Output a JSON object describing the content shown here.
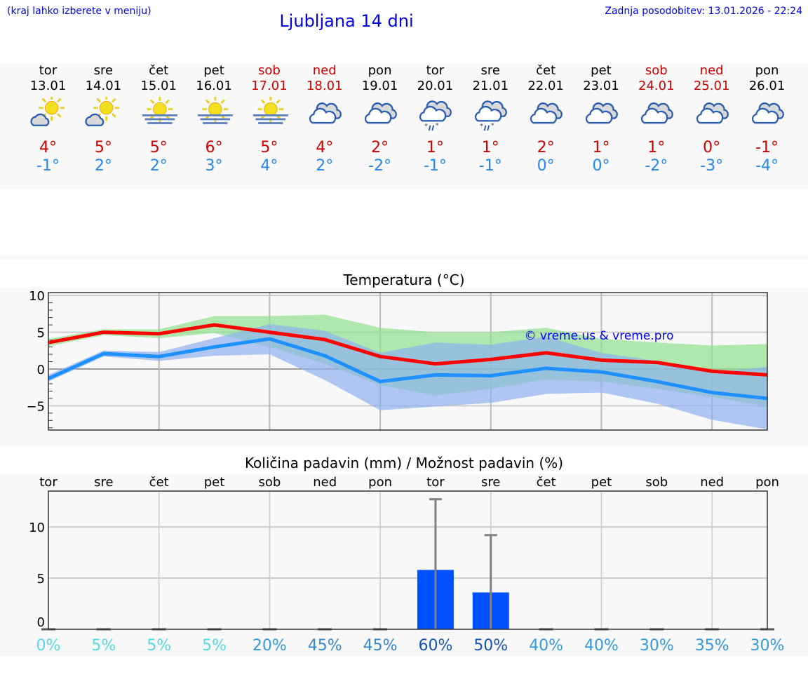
{
  "header": {
    "hint": "(kraj lahko izberete v meniju)",
    "title": "Ljubljana 14 dni",
    "updated": "Zadnja posodobitev: 13.01.2026 - 22:24"
  },
  "colors": {
    "weekend": "#cc0000",
    "max": "#ff0000",
    "min": "#1e90ff",
    "max_band": "#90e090",
    "min_band": "#8fb0ee",
    "precip_bar": "#0050ff",
    "error_bar": "#808080"
  },
  "days": [
    {
      "name": "tor",
      "date": "13.01",
      "weekend": false,
      "icon": "partly-cloudy",
      "max": "4°",
      "min": "-1°"
    },
    {
      "name": "sre",
      "date": "14.01",
      "weekend": false,
      "icon": "partly-cloudy",
      "max": "5°",
      "min": "2°"
    },
    {
      "name": "čet",
      "date": "15.01",
      "weekend": false,
      "icon": "sun-fog",
      "max": "5°",
      "min": "2°"
    },
    {
      "name": "pet",
      "date": "16.01",
      "weekend": false,
      "icon": "sun-fog",
      "max": "6°",
      "min": "3°"
    },
    {
      "name": "sob",
      "date": "17.01",
      "weekend": true,
      "icon": "sun-fog",
      "max": "5°",
      "min": "4°"
    },
    {
      "name": "ned",
      "date": "18.01",
      "weekend": true,
      "icon": "cloudy",
      "max": "4°",
      "min": "2°"
    },
    {
      "name": "pon",
      "date": "19.01",
      "weekend": false,
      "icon": "cloudy",
      "max": "2°",
      "min": "-2°"
    },
    {
      "name": "tor",
      "date": "20.01",
      "weekend": false,
      "icon": "cloudy-sleet",
      "max": "1°",
      "min": "-1°"
    },
    {
      "name": "sre",
      "date": "21.01",
      "weekend": false,
      "icon": "cloudy-sleet",
      "max": "1°",
      "min": "-1°"
    },
    {
      "name": "čet",
      "date": "22.01",
      "weekend": false,
      "icon": "cloudy",
      "max": "2°",
      "min": "0°"
    },
    {
      "name": "pet",
      "date": "23.01",
      "weekend": false,
      "icon": "cloudy",
      "max": "1°",
      "min": "0°"
    },
    {
      "name": "sob",
      "date": "24.01",
      "weekend": true,
      "icon": "cloudy",
      "max": "1°",
      "min": "-2°"
    },
    {
      "name": "ned",
      "date": "25.01",
      "weekend": true,
      "icon": "cloudy",
      "max": "0°",
      "min": "-3°"
    },
    {
      "name": "pon",
      "date": "26.01",
      "weekend": false,
      "icon": "cloudy",
      "max": "-1°",
      "min": "-4°"
    }
  ],
  "chart_data": [
    {
      "type": "line",
      "title": "Temperatura (°C)",
      "ylim": [
        -8.3,
        10.4
      ],
      "yticks": [
        "10",
        "5",
        "0",
        "−5"
      ],
      "ytick_values": [
        10,
        5,
        0,
        -5
      ],
      "grid": true,
      "watermark": "© vreme.us & vreme.pro",
      "series": [
        {
          "key": "max",
          "values": [
            3.6,
            5.0,
            4.8,
            6.0,
            5.0,
            4.0,
            1.7,
            0.7,
            1.3,
            2.2,
            1.2,
            0.9,
            -0.3,
            -0.8
          ]
        },
        {
          "key": "min",
          "values": [
            -1.3,
            2.1,
            1.7,
            3.0,
            4.1,
            1.8,
            -1.7,
            -0.8,
            -0.9,
            0.1,
            -0.4,
            -1.7,
            -3.2,
            -4.0
          ]
        }
      ],
      "bands": [
        {
          "key": "min_band",
          "upper": [
            -0.8,
            2.5,
            2.3,
            4.2,
            6.1,
            5.2,
            2.2,
            3.6,
            3.3,
            4.4,
            2.2,
            1.1,
            -0.5,
            0.3
          ],
          "lower": [
            -1.7,
            1.7,
            1.1,
            1.8,
            2.0,
            -1.5,
            -5.6,
            -5.1,
            -4.6,
            -3.4,
            -3.2,
            -4.7,
            -6.9,
            -8.2
          ]
        },
        {
          "key": "max_band",
          "upper": [
            4.1,
            5.4,
            5.4,
            7.2,
            7.2,
            7.4,
            5.6,
            5.0,
            5.0,
            5.6,
            4.1,
            3.6,
            3.2,
            3.4
          ],
          "lower": [
            3.1,
            4.6,
            4.2,
            4.9,
            3.0,
            0.7,
            -2.2,
            -3.6,
            -2.7,
            -1.4,
            -1.7,
            -2.7,
            -3.8,
            -5.1
          ]
        }
      ]
    },
    {
      "type": "bar",
      "title": "Količina padavin (mm) / Možnost padavin (%)",
      "ylim": [
        0,
        13.5
      ],
      "yticks": [
        "10",
        "5",
        "0"
      ],
      "ytick_values": [
        10,
        5,
        0
      ],
      "grid": true,
      "categories": [
        "tor",
        "sre",
        "čet",
        "pet",
        "sob",
        "ned",
        "pon",
        "tor",
        "sre",
        "čet",
        "pet",
        "sob",
        "ned",
        "pon"
      ],
      "values": [
        0,
        0,
        0,
        0,
        0,
        0,
        0,
        5.8,
        3.6,
        0,
        0,
        0,
        0,
        0
      ],
      "error_max": [
        0,
        0,
        0,
        0,
        0,
        0,
        0,
        12.7,
        9.2,
        0,
        0,
        0,
        0,
        0
      ],
      "probability": [
        {
          "label": "0%",
          "color": "#55d8e8"
        },
        {
          "label": "5%",
          "color": "#55d8e8"
        },
        {
          "label": "5%",
          "color": "#55d8e8"
        },
        {
          "label": "5%",
          "color": "#55d8e8"
        },
        {
          "label": "20%",
          "color": "#3399dd"
        },
        {
          "label": "45%",
          "color": "#3388cc"
        },
        {
          "label": "45%",
          "color": "#3388cc"
        },
        {
          "label": "60%",
          "color": "#1155bb"
        },
        {
          "label": "50%",
          "color": "#1155bb"
        },
        {
          "label": "40%",
          "color": "#3399dd"
        },
        {
          "label": "40%",
          "color": "#3399dd"
        },
        {
          "label": "30%",
          "color": "#3399dd"
        },
        {
          "label": "35%",
          "color": "#3399dd"
        },
        {
          "label": "30%",
          "color": "#3399dd"
        }
      ]
    }
  ]
}
